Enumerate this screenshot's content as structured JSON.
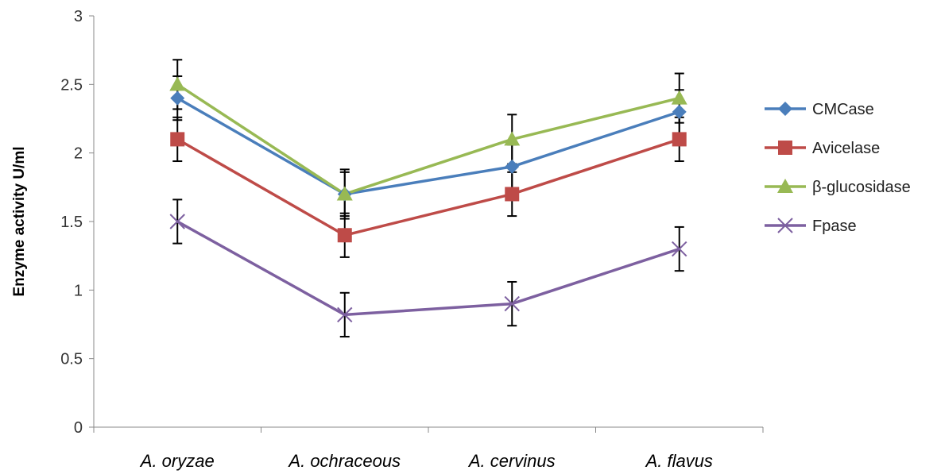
{
  "chart_data": {
    "type": "line",
    "ylabel": "Enzyme activity U/ml",
    "xlabel": "",
    "title": "",
    "ylim": [
      0,
      3
    ],
    "yticks": [
      "0",
      "0.5",
      "1",
      "1.5",
      "2",
      "2.5",
      "3"
    ],
    "categories": [
      "A. oryzae",
      "A. ochraceous",
      "A. cervinus",
      "A. flavus"
    ],
    "grid": false,
    "legend_position": "right",
    "series": [
      {
        "name": "CMCase",
        "values": [
          2.4,
          1.7,
          1.9,
          2.3
        ],
        "error": [
          0.16,
          0.16,
          0.16,
          0.16
        ],
        "color": "#4a7ebb",
        "marker": "diamond"
      },
      {
        "name": "Avicelase",
        "values": [
          2.1,
          1.4,
          1.7,
          2.1
        ],
        "error": [
          0.16,
          0.16,
          0.16,
          0.16
        ],
        "color": "#be4b48",
        "marker": "square"
      },
      {
        "name": "β-glucosidase",
        "values": [
          2.5,
          1.7,
          2.1,
          2.4
        ],
        "error": [
          0.18,
          0.18,
          0.18,
          0.18
        ],
        "color": "#98b954",
        "marker": "triangle"
      },
      {
        "name": "Fpase",
        "values": [
          1.5,
          0.82,
          0.9,
          1.3
        ],
        "error": [
          0.16,
          0.16,
          0.16,
          0.16
        ],
        "color": "#7d60a0",
        "marker": "x"
      }
    ]
  }
}
